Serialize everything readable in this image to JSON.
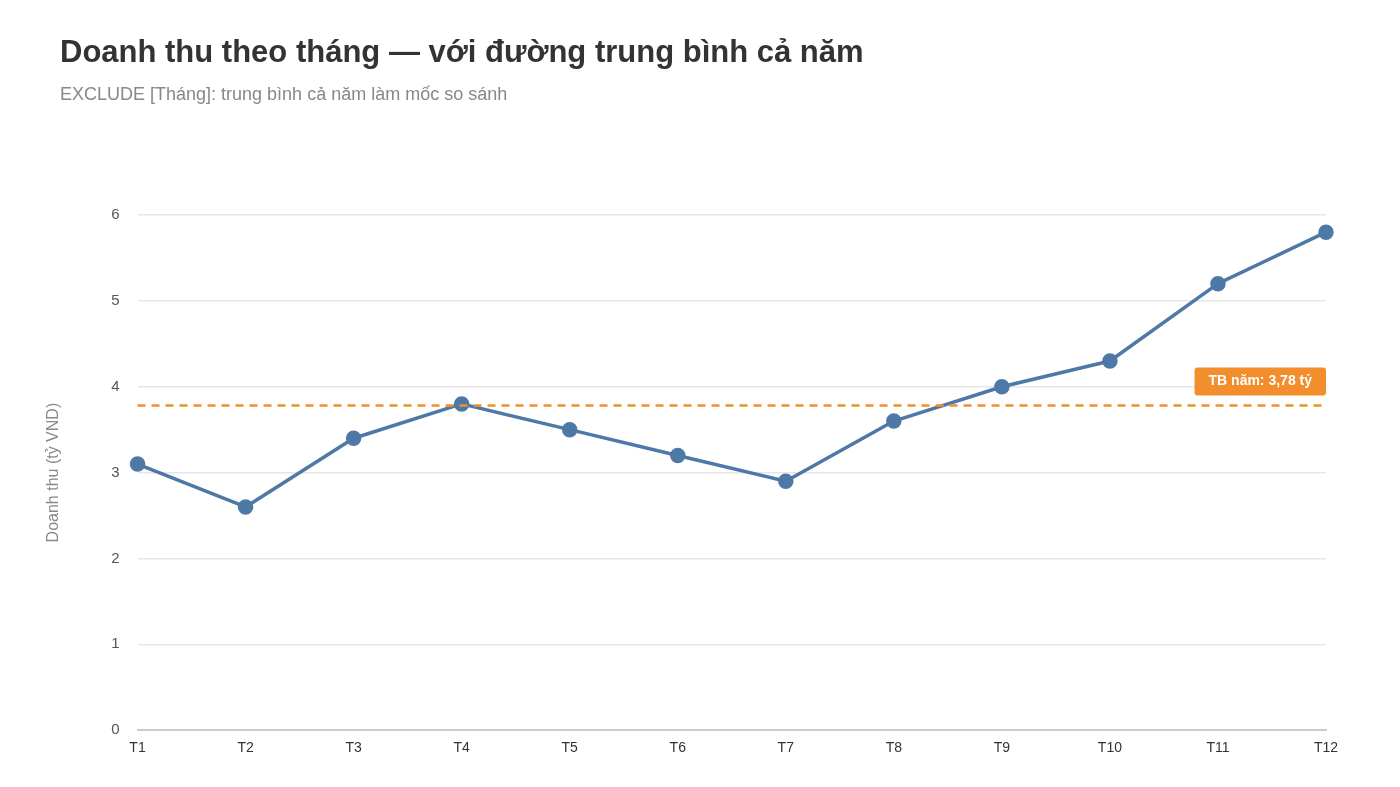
{
  "chart_data": {
    "type": "line",
    "title": "Doanh thu theo tháng — với đường trung bình cả năm",
    "subtitle": "EXCLUDE [Tháng]: trung bình cả năm làm mốc so sánh",
    "ylabel": "Doanh thu (tỷ VND)",
    "categories": [
      "T1",
      "T2",
      "T3",
      "T4",
      "T5",
      "T6",
      "T7",
      "T8",
      "T9",
      "T10",
      "T11",
      "T12"
    ],
    "series": [
      {
        "color": "#4e79a7",
        "values": [
          3.1,
          2.6,
          3.4,
          3.8,
          3.5,
          3.2,
          2.9,
          3.6,
          4.0,
          4.3,
          5.2,
          5.8
        ]
      }
    ],
    "ylim": [
      0,
      6
    ],
    "yticks": [
      0,
      1,
      2,
      3,
      4,
      5,
      6
    ],
    "grid": "y",
    "legend": false,
    "marker": "circle",
    "line_style": "solid",
    "ref_lines": [
      {
        "axis": "y",
        "value": 3.78,
        "label": "TB năm: 3,78 tỷ",
        "color": "#f28e2b",
        "line_style": "dashed"
      }
    ]
  }
}
